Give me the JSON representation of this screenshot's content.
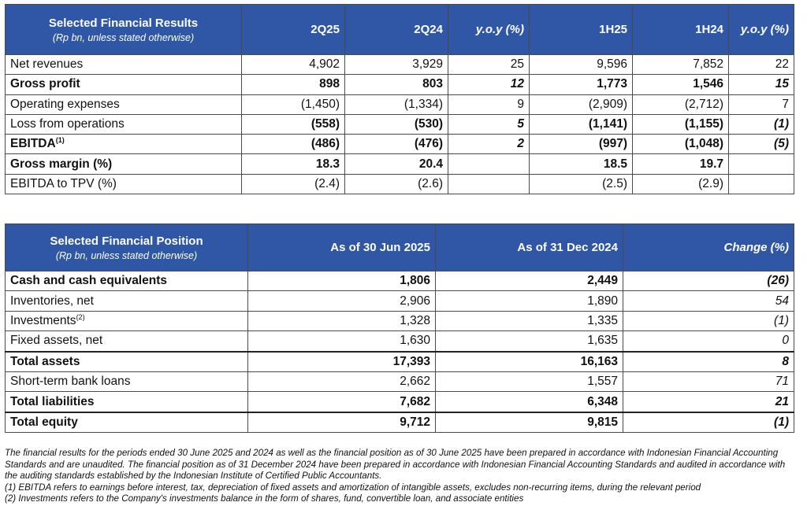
{
  "results": {
    "title": "Selected Financial Results",
    "subtitle": "(Rp bn, unless stated otherwise)",
    "columns": [
      "2Q25",
      "2Q24",
      "y.o.y (%)",
      "1H25",
      "1H24",
      "y.o.y (%)"
    ],
    "rows": [
      {
        "label": "Net revenues",
        "sup": "",
        "c": [
          "4,902",
          "3,929",
          "25",
          "9,596",
          "7,852",
          "22"
        ]
      },
      {
        "label": "Gross profit",
        "sup": "",
        "c": [
          "898",
          "803",
          "12",
          "1,773",
          "1,546",
          "15"
        ]
      },
      {
        "label": "Operating expenses",
        "sup": "",
        "c": [
          "(1,450)",
          "(1,334)",
          "9",
          "(2,909)",
          "(2,712)",
          "7"
        ]
      },
      {
        "label": "Loss from operations",
        "sup": "",
        "c": [
          "(558)",
          "(530)",
          "5",
          "(1,141)",
          "(1,155)",
          "(1)"
        ]
      },
      {
        "label": "EBITDA",
        "sup": "(1)",
        "c": [
          "(486)",
          "(476)",
          "2",
          "(997)",
          "(1,048)",
          "(5)"
        ]
      },
      {
        "label": "Gross margin (%)",
        "sup": "",
        "c": [
          "18.3",
          "20.4",
          "",
          "18.5",
          "19.7",
          ""
        ]
      },
      {
        "label": "EBITDA to TPV (%)",
        "sup": "",
        "c": [
          "(2.4)",
          "(2.6)",
          "",
          "(2.5)",
          "(2.9)",
          ""
        ]
      }
    ]
  },
  "position": {
    "title": "Selected Financial Position",
    "subtitle": "(Rp bn, unless stated otherwise)",
    "columns": [
      "As of 30 Jun 2025",
      "As of 31 Dec 2024",
      "Change (%)"
    ],
    "rows": [
      {
        "label": "Cash and cash equivalents",
        "sup": "",
        "c": [
          "1,806",
          "2,449",
          "(26)"
        ]
      },
      {
        "label": "Inventories, net",
        "sup": "",
        "c": [
          "2,906",
          "1,890",
          "54"
        ]
      },
      {
        "label": "Investments",
        "sup": "(2)",
        "c": [
          "1,328",
          "1,335",
          "(1)"
        ]
      },
      {
        "label": "Fixed assets, net",
        "sup": "",
        "c": [
          "1,630",
          "1,635",
          "0"
        ]
      },
      {
        "label": "Total assets",
        "sup": "",
        "c": [
          "17,393",
          "16,163",
          "8"
        ]
      },
      {
        "label": "Short-term bank loans",
        "sup": "",
        "c": [
          "2,662",
          "1,557",
          "71"
        ]
      },
      {
        "label": "Total liabilities",
        "sup": "",
        "c": [
          "7,682",
          "6,348",
          "21"
        ]
      },
      {
        "label": "Total equity",
        "sup": "",
        "c": [
          "9,712",
          "9,815",
          "(1)"
        ]
      }
    ]
  },
  "notes": [
    "The financial results for the periods ended 30 June 2025 and 2024 as well as the financial position as of 30 June 2025 have been prepared in accordance with Indonesian Financial Accounting Standards and are unaudited. The financial position as of 31 December 2024 have been prepared in accordance with Indonesian Financial Accounting Standards and audited in accordance with the auditing standards established by the Indonesian Institute of Certified Public Accountants.",
    "(1) EBITDA refers to earnings before interest, tax, depreciation of fixed assets and amortization of intangible assets, excludes non-recurring items, during the relevant period",
    "(2) Investments refers to the Company's investments balance in the form of shares, fund, convertible loan, and associate entities"
  ]
}
